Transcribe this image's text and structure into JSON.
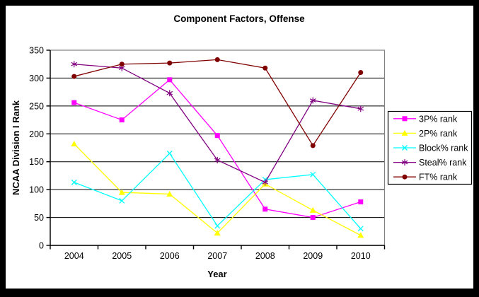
{
  "chart_data": {
    "type": "line",
    "title": "Component Factors, Offense",
    "xlabel": "Year",
    "ylabel": "NCAA Division I Rank",
    "categories": [
      "2004",
      "2005",
      "2006",
      "2007",
      "2008",
      "2009",
      "2010"
    ],
    "ylim": [
      0,
      350
    ],
    "y_ticks": [
      0,
      50,
      100,
      150,
      200,
      250,
      300,
      350
    ],
    "grid": "horizontal-major",
    "legend_position": "right",
    "series": [
      {
        "name": "3P% rank",
        "color": "#FF00FF",
        "marker": "square",
        "values": [
          256,
          225,
          297,
          197,
          65,
          50,
          78
        ]
      },
      {
        "name": "2P% rank",
        "color": "#FFFF00",
        "marker": "triangle",
        "values": [
          182,
          95,
          92,
          22,
          110,
          63,
          18
        ]
      },
      {
        "name": "Block% rank",
        "color": "#00FFFF",
        "marker": "x",
        "values": [
          113,
          80,
          165,
          35,
          118,
          127,
          30
        ]
      },
      {
        "name": "Steal% rank",
        "color": "#800080",
        "marker": "asterisk",
        "values": [
          325,
          318,
          273,
          153,
          113,
          260,
          245
        ]
      },
      {
        "name": "FT% rank",
        "color": "#800000",
        "marker": "circle",
        "values": [
          303,
          325,
          327,
          333,
          318,
          179,
          310
        ]
      }
    ]
  },
  "colors": {
    "frame_border": "#000000",
    "plot_border": "#808080",
    "axis": "#000000",
    "gridline": "#000000",
    "background": "#ffffff",
    "legend_border": "#000000"
  }
}
